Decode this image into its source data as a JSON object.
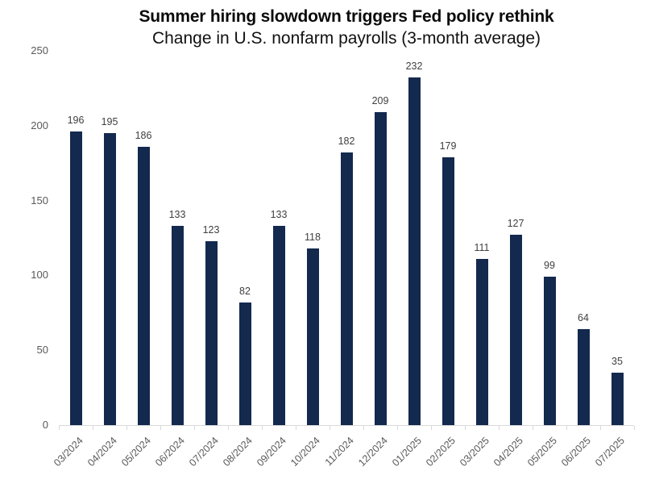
{
  "chart_data": {
    "type": "bar",
    "title": "Summer hiring slowdown triggers Fed policy rethink",
    "subtitle": "Change in U.S. nonfarm payrolls (3-month average)",
    "categories": [
      "03/2024",
      "04/2024",
      "05/2024",
      "06/2024",
      "07/2024",
      "08/2024",
      "09/2024",
      "10/2024",
      "11/2024",
      "12/2024",
      "01/2025",
      "02/2025",
      "03/2025",
      "04/2025",
      "05/2025",
      "06/2025",
      "07/2025"
    ],
    "values": [
      196,
      195,
      186,
      133,
      123,
      82,
      133,
      118,
      182,
      209,
      232,
      179,
      111,
      127,
      99,
      64,
      35
    ],
    "xlabel": "",
    "ylabel": "",
    "ylim": [
      0,
      250
    ],
    "yticks": [
      0,
      50,
      100,
      150,
      200,
      250
    ],
    "grid": false,
    "legend_position": "none",
    "data_labels": true,
    "colors": {
      "bar": "#13294e",
      "value_label": "#404040",
      "axis_label": "#595959",
      "axis_line": "#d9d9d9",
      "title": "#0b0b0b",
      "background": "#ffffff"
    }
  }
}
